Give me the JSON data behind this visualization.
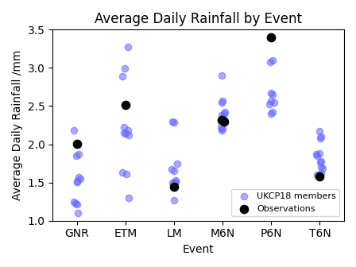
{
  "title": "Average Daily Rainfall by Event",
  "xlabel": "Event",
  "ylabel": "Average Daily Rainfall /mm",
  "ylim": [
    1.0,
    3.5
  ],
  "events": [
    "GNR",
    "ETM",
    "LM",
    "M6N",
    "P6N",
    "T6N"
  ],
  "ukcp18": {
    "GNR": [
      2.18,
      1.87,
      1.85,
      1.57,
      1.55,
      1.52,
      1.51,
      1.25,
      1.23,
      1.22,
      1.1
    ],
    "ETM": [
      3.27,
      2.99,
      2.89,
      2.22,
      2.18,
      2.15,
      2.14,
      2.12,
      1.63,
      1.61,
      1.3
    ],
    "LM": [
      2.3,
      2.29,
      1.75,
      1.67,
      1.65,
      1.53,
      1.51,
      1.5,
      1.5,
      1.27
    ],
    "M6N": [
      2.9,
      2.57,
      2.55,
      2.42,
      2.4,
      2.38,
      2.35,
      2.22,
      2.2,
      2.18
    ],
    "P6N": [
      3.1,
      3.08,
      2.67,
      2.65,
      2.57,
      2.55,
      2.53,
      2.42,
      2.4
    ],
    "T6N": [
      2.17,
      2.1,
      2.08,
      1.88,
      1.87,
      1.85,
      1.78,
      1.77,
      1.7,
      1.68,
      1.62,
      1.6
    ]
  },
  "obs": {
    "GNR": [
      2.01
    ],
    "ETM": [
      2.52
    ],
    "LM": [
      1.44
    ],
    "M6N": [
      2.32,
      2.3
    ],
    "P6N": [
      3.4
    ],
    "T6N": [
      1.58
    ]
  },
  "ukcp18_color": "#6666ff",
  "obs_color": "#000000",
  "ukcp18_alpha": 0.55,
  "ukcp18_size": 36,
  "obs_size": 55,
  "figsize": [
    4.48,
    3.36
  ],
  "dpi": 100
}
